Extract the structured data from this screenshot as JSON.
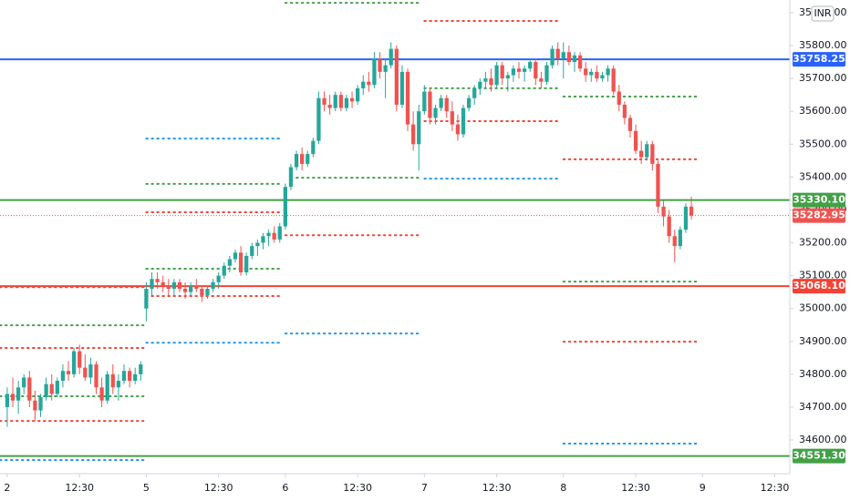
{
  "chart_data": {
    "type": "candlestick",
    "currency": "INR",
    "up_color": "#26a69a",
    "down_color": "#ef5350",
    "xlim": [
      -1.3,
      140.7
    ],
    "ylim": [
      34497.5,
      35938.6
    ],
    "xticks": [
      {
        "value": 0,
        "label": "2"
      },
      {
        "value": 13,
        "label": "12:30"
      },
      {
        "value": 25,
        "label": "5"
      },
      {
        "value": 38,
        "label": "12:30"
      },
      {
        "value": 50,
        "label": "6"
      },
      {
        "value": 63,
        "label": "12:30"
      },
      {
        "value": 75,
        "label": "7"
      },
      {
        "value": 88,
        "label": "12:30"
      },
      {
        "value": 100,
        "label": "8"
      },
      {
        "value": 113,
        "label": "12:30"
      },
      {
        "value": 125,
        "label": "9"
      },
      {
        "value": 138,
        "label": "12:30"
      }
    ],
    "yticks": [
      {
        "value": 34600,
        "label": "34600.00"
      },
      {
        "value": 34700,
        "label": "34700.00"
      },
      {
        "value": 34800,
        "label": "34800.00"
      },
      {
        "value": 34900,
        "label": "34900.00"
      },
      {
        "value": 35000,
        "label": "35000.00"
      },
      {
        "value": 35100,
        "label": "35100.00"
      },
      {
        "value": 35200,
        "label": "35200.00"
      },
      {
        "value": 35300,
        "label": "35300.00"
      },
      {
        "value": 35400,
        "label": "35400.00"
      },
      {
        "value": 35500,
        "label": "35500.00"
      },
      {
        "value": 35600,
        "label": "35600.00"
      },
      {
        "value": 35700,
        "label": "35700.00"
      },
      {
        "value": 35800,
        "label": "35800.00"
      },
      {
        "value": 35900,
        "label": "35900.00"
      }
    ],
    "x": [
      0,
      1,
      2,
      3,
      4,
      5,
      6,
      7,
      8,
      9,
      10,
      11,
      12,
      13,
      14,
      15,
      16,
      17,
      18,
      19,
      20,
      21,
      22,
      23,
      24,
      25,
      26,
      27,
      28,
      29,
      30,
      31,
      32,
      33,
      34,
      35,
      36,
      37,
      38,
      39,
      40,
      41,
      42,
      43,
      44,
      45,
      46,
      47,
      48,
      49,
      50,
      51,
      52,
      53,
      54,
      55,
      56,
      57,
      58,
      59,
      60,
      61,
      62,
      63,
      64,
      65,
      66,
      67,
      68,
      69,
      70,
      71,
      72,
      73,
      74,
      75,
      76,
      77,
      78,
      79,
      80,
      81,
      82,
      83,
      84,
      85,
      86,
      87,
      88,
      89,
      90,
      91,
      92,
      93,
      94,
      95,
      96,
      97,
      98,
      99,
      100,
      101,
      102,
      103,
      104,
      105,
      106,
      107,
      108,
      109,
      110,
      111,
      112,
      113,
      114,
      115,
      116,
      117,
      118,
      119,
      120,
      121,
      122,
      123
    ],
    "ohlc": [
      [
        34700,
        34760,
        34640,
        34740
      ],
      [
        34740,
        34790,
        34700,
        34720
      ],
      [
        34720,
        34780,
        34680,
        34760
      ],
      [
        34760,
        34800,
        34740,
        34790
      ],
      [
        34790,
        34810,
        34700,
        34720
      ],
      [
        34720,
        34750,
        34660,
        34690
      ],
      [
        34690,
        34740,
        34670,
        34730
      ],
      [
        34730,
        34790,
        34720,
        34770
      ],
      [
        34770,
        34800,
        34720,
        34740
      ],
      [
        34740,
        34790,
        34730,
        34780
      ],
      [
        34780,
        34830,
        34760,
        34810
      ],
      [
        34810,
        34840,
        34780,
        34800
      ],
      [
        34800,
        34880,
        34790,
        34870
      ],
      [
        34870,
        34890,
        34800,
        34820
      ],
      [
        34820,
        34860,
        34780,
        34790
      ],
      [
        34790,
        34850,
        34770,
        34830
      ],
      [
        34830,
        34840,
        34740,
        34760
      ],
      [
        34760,
        34790,
        34700,
        34720
      ],
      [
        34720,
        34810,
        34710,
        34800
      ],
      [
        34800,
        34830,
        34740,
        34760
      ],
      [
        34760,
        34800,
        34720,
        34780
      ],
      [
        34780,
        34830,
        34770,
        34810
      ],
      [
        34810,
        34820,
        34760,
        34780
      ],
      [
        34780,
        34820,
        34770,
        34800
      ],
      [
        34800,
        34840,
        34780,
        34830
      ],
      [
        35000,
        35080,
        34960,
        35060
      ],
      [
        35060,
        35110,
        35040,
        35090
      ],
      [
        35090,
        35110,
        35060,
        35080
      ],
      [
        35080,
        35100,
        35050,
        35070
      ],
      [
        35070,
        35090,
        35040,
        35060
      ],
      [
        35060,
        35090,
        35040,
        35080
      ],
      [
        35080,
        35090,
        35050,
        35060
      ],
      [
        35060,
        35080,
        35030,
        35050
      ],
      [
        35050,
        35080,
        35040,
        35070
      ],
      [
        35070,
        35090,
        35050,
        35060
      ],
      [
        35060,
        35070,
        35020,
        35040
      ],
      [
        35040,
        35070,
        35030,
        35060
      ],
      [
        35060,
        35090,
        35050,
        35080
      ],
      [
        35080,
        35110,
        35060,
        35100
      ],
      [
        35100,
        35140,
        35090,
        35130
      ],
      [
        35130,
        35160,
        35110,
        35150
      ],
      [
        35150,
        35180,
        35140,
        35170
      ],
      [
        35170,
        35190,
        35100,
        35110
      ],
      [
        35110,
        35170,
        35100,
        35160
      ],
      [
        35160,
        35200,
        35150,
        35190
      ],
      [
        35190,
        35210,
        35160,
        35200
      ],
      [
        35200,
        35230,
        35180,
        35220
      ],
      [
        35220,
        35240,
        35190,
        35230
      ],
      [
        35230,
        35250,
        35200,
        35210
      ],
      [
        35210,
        35260,
        35200,
        35250
      ],
      [
        35250,
        35380,
        35240,
        35370
      ],
      [
        35370,
        35440,
        35360,
        35430
      ],
      [
        35430,
        35480,
        35420,
        35470
      ],
      [
        35470,
        35490,
        35420,
        35440
      ],
      [
        35440,
        35480,
        35430,
        35470
      ],
      [
        35470,
        35520,
        35460,
        35510
      ],
      [
        35510,
        35660,
        35500,
        35640
      ],
      [
        35640,
        35660,
        35600,
        35620
      ],
      [
        35620,
        35650,
        35590,
        35610
      ],
      [
        35610,
        35660,
        35600,
        35650
      ],
      [
        35650,
        35660,
        35600,
        35610
      ],
      [
        35610,
        35650,
        35600,
        35640
      ],
      [
        35640,
        35660,
        35610,
        35630
      ],
      [
        35630,
        35680,
        35620,
        35670
      ],
      [
        35670,
        35710,
        35650,
        35690
      ],
      [
        35690,
        35720,
        35660,
        35680
      ],
      [
        35680,
        35780,
        35670,
        35760
      ],
      [
        35760,
        35780,
        35700,
        35720
      ],
      [
        35720,
        35760,
        35640,
        35740
      ],
      [
        35740,
        35810,
        35730,
        35790
      ],
      [
        35790,
        35800,
        35600,
        35620
      ],
      [
        35620,
        35740,
        35610,
        35720
      ],
      [
        35720,
        35730,
        35540,
        35560
      ],
      [
        35560,
        35600,
        35480,
        35500
      ],
      [
        35500,
        35620,
        35420,
        35600
      ],
      [
        35600,
        35680,
        35590,
        35660
      ],
      [
        35660,
        35670,
        35560,
        35580
      ],
      [
        35580,
        35620,
        35560,
        35610
      ],
      [
        35610,
        35650,
        35600,
        35640
      ],
      [
        35640,
        35650,
        35580,
        35600
      ],
      [
        35600,
        35630,
        35540,
        35560
      ],
      [
        35560,
        35590,
        35510,
        35530
      ],
      [
        35530,
        35620,
        35520,
        35610
      ],
      [
        35610,
        35650,
        35600,
        35640
      ],
      [
        35640,
        35680,
        35620,
        35670
      ],
      [
        35670,
        35700,
        35650,
        35690
      ],
      [
        35690,
        35720,
        35670,
        35700
      ],
      [
        35700,
        35730,
        35660,
        35680
      ],
      [
        35680,
        35750,
        35670,
        35740
      ],
      [
        35740,
        35750,
        35680,
        35700
      ],
      [
        35700,
        35720,
        35660,
        35710
      ],
      [
        35710,
        35740,
        35690,
        35730
      ],
      [
        35730,
        35750,
        35700,
        35720
      ],
      [
        35720,
        35740,
        35690,
        35730
      ],
      [
        35730,
        35760,
        35720,
        35750
      ],
      [
        35750,
        35760,
        35680,
        35700
      ],
      [
        35700,
        35720,
        35670,
        35690
      ],
      [
        35690,
        35750,
        35680,
        35740
      ],
      [
        35740,
        35800,
        35730,
        35790
      ],
      [
        35790,
        35810,
        35740,
        35760
      ],
      [
        35760,
        35810,
        35700,
        35780
      ],
      [
        35780,
        35800,
        35740,
        35750
      ],
      [
        35750,
        35780,
        35720,
        35770
      ],
      [
        35770,
        35780,
        35720,
        35730
      ],
      [
        35730,
        35750,
        35690,
        35710
      ],
      [
        35710,
        35730,
        35690,
        35720
      ],
      [
        35720,
        35740,
        35690,
        35700
      ],
      [
        35700,
        35720,
        35690,
        35710
      ],
      [
        35710,
        35740,
        35690,
        35730
      ],
      [
        35730,
        35740,
        35650,
        35660
      ],
      [
        35660,
        35680,
        35600,
        35620
      ],
      [
        35620,
        35630,
        35560,
        35580
      ],
      [
        35580,
        35590,
        35520,
        35540
      ],
      [
        35540,
        35560,
        35470,
        35480
      ],
      [
        35480,
        35510,
        35440,
        35460
      ],
      [
        35460,
        35510,
        35450,
        35500
      ],
      [
        35500,
        35510,
        35420,
        35440
      ],
      [
        35440,
        35450,
        35290,
        35310
      ],
      [
        35310,
        35330,
        35250,
        35280
      ],
      [
        35280,
        35300,
        35200,
        35220
      ],
      [
        35220,
        35240,
        35140,
        35190
      ],
      [
        35190,
        35250,
        35180,
        35240
      ],
      [
        35240,
        35320,
        35230,
        35310
      ],
      [
        35310,
        35340,
        35270,
        35282.95
      ]
    ],
    "levels": [
      {
        "value": 34949,
        "color": "#43a047",
        "x": [
          -1.3,
          24.5
        ]
      },
      {
        "value": 34880,
        "color": "#f44336",
        "x": [
          -1.3,
          24.5
        ]
      },
      {
        "value": 34733,
        "color": "#43a047",
        "x": [
          -1.3,
          24.5
        ]
      },
      {
        "value": 34658,
        "color": "#f44336",
        "x": [
          -1.3,
          24.5
        ]
      },
      {
        "value": 34539,
        "color": "#2196f3",
        "x": [
          -1.3,
          24.5
        ]
      },
      {
        "value": 35065,
        "color": "#f44336",
        "x": [
          -1.3,
          24.5
        ]
      },
      {
        "value": 35517,
        "color": "#2196f3",
        "x": [
          25,
          49.5
        ]
      },
      {
        "value": 35379,
        "color": "#43a047",
        "x": [
          25,
          49.5
        ]
      },
      {
        "value": 35293,
        "color": "#f44336",
        "x": [
          25,
          49.5
        ]
      },
      {
        "value": 35121,
        "color": "#43a047",
        "x": [
          25,
          49.5
        ]
      },
      {
        "value": 35038,
        "color": "#f44336",
        "x": [
          25,
          49.5
        ]
      },
      {
        "value": 34896,
        "color": "#2196f3",
        "x": [
          25,
          49.5
        ]
      },
      {
        "value": 35930,
        "color": "#43a047",
        "x": [
          50,
          74.5
        ]
      },
      {
        "value": 35398,
        "color": "#43a047",
        "x": [
          52,
          74.5
        ]
      },
      {
        "value": 35223,
        "color": "#f44336",
        "x": [
          50,
          74.5
        ]
      },
      {
        "value": 34924,
        "color": "#2196f3",
        "x": [
          50,
          74.5
        ]
      },
      {
        "value": 35875,
        "color": "#f44336",
        "x": [
          75,
          99.5
        ]
      },
      {
        "value": 35670,
        "color": "#43a047",
        "x": [
          75,
          99.5
        ]
      },
      {
        "value": 35570,
        "color": "#f44336",
        "x": [
          75,
          99.5
        ]
      },
      {
        "value": 35395,
        "color": "#2196f3",
        "x": [
          75,
          99.5
        ]
      },
      {
        "value": 35645,
        "color": "#43a047",
        "x": [
          100,
          124.5
        ]
      },
      {
        "value": 35454,
        "color": "#f44336",
        "x": [
          100,
          124.5
        ]
      },
      {
        "value": 35082,
        "color": "#43a047",
        "x": [
          100,
          124.5
        ]
      },
      {
        "value": 34899,
        "color": "#f44336",
        "x": [
          100,
          124.5
        ]
      },
      {
        "value": 34589,
        "color": "#2196f3",
        "x": [
          100,
          124.5
        ]
      }
    ],
    "hlines": [
      {
        "value": 35758.25,
        "label": "35758.25",
        "color": "#2962ff",
        "style": "solid"
      },
      {
        "value": 35330.1,
        "label": "35330.10",
        "color": "#43a047",
        "style": "solid"
      },
      {
        "value": 35282.95,
        "label": "35282.95",
        "color": "#ef5350",
        "style": "dotted"
      },
      {
        "value": 35068.1,
        "label": "35068.10",
        "color": "#f44336",
        "style": "solid"
      },
      {
        "value": 34551.3,
        "label": "34551.30",
        "color": "#43a047",
        "style": "solid"
      }
    ]
  }
}
